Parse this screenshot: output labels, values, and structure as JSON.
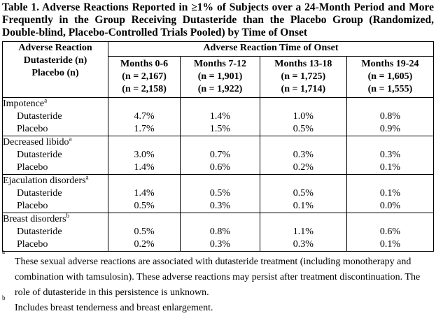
{
  "title": "Table 1. Adverse Reactions Reported in ≥1% of Subjects over a 24-Month Period and More Frequently in the Group Receiving Dutasteride than the Placebo Group (Randomized, Double-blind, Placebo-Controlled Trials Pooled) by Time of Onset",
  "header": {
    "col1": [
      "Adverse Reaction",
      "Dutasteride (n)",
      "Placebo (n)"
    ],
    "group": "Adverse Reaction Time of Onset",
    "periods": [
      {
        "label": "Months 0-6",
        "dut_n": "(n = 2,167)",
        "pla_n": "(n = 2,158)"
      },
      {
        "label": "Months 7-12",
        "dut_n": "(n = 1,901)",
        "pla_n": "(n = 1,922)"
      },
      {
        "label": "Months 13-18",
        "dut_n": "(n = 1,725)",
        "pla_n": "(n = 1,714)"
      },
      {
        "label": "Months 19-24",
        "dut_n": "(n = 1,605)",
        "pla_n": "(n = 1,555)"
      }
    ]
  },
  "rows": [
    {
      "name": "Impotence",
      "mark": "a",
      "dut_label": "Dutasteride",
      "pla_label": "Placebo",
      "dut": [
        "4.7%",
        "1.4%",
        "1.0%",
        "0.8%"
      ],
      "pla": [
        "1.7%",
        "1.5%",
        "0.5%",
        "0.9%"
      ]
    },
    {
      "name": "Decreased libido",
      "mark": "a",
      "dut_label": "Dutasteride",
      "pla_label": "Placebo",
      "dut": [
        "3.0%",
        "0.7%",
        "0.3%",
        "0.3%"
      ],
      "pla": [
        "1.4%",
        "0.6%",
        "0.2%",
        "0.1%"
      ]
    },
    {
      "name": "Ejaculation disorders",
      "mark": "a",
      "dut_label": "Dutasteride",
      "pla_label": "Placebo",
      "dut": [
        "1.4%",
        "0.5%",
        "0.5%",
        "0.1%"
      ],
      "pla": [
        "0.5%",
        "0.3%",
        "0.1%",
        "0.0%"
      ]
    },
    {
      "name": "Breast disorders",
      "mark": "b",
      "dut_label": "Dutasteride",
      "pla_label": "Placebo",
      "dut": [
        "0.5%",
        "0.8%",
        "1.1%",
        "0.6%"
      ],
      "pla": [
        "0.2%",
        "0.3%",
        "0.3%",
        "0.1%"
      ]
    }
  ],
  "footnotes": [
    {
      "mark": "a",
      "text": "These sexual adverse reactions are associated with dutasteride treatment (including monotherapy and combination with tamsulosin). These adverse reactions may persist after treatment discontinuation. The role of dutasteride in this persistence is unknown."
    },
    {
      "mark": "b",
      "text": "Includes breast tenderness and breast enlargement."
    }
  ]
}
